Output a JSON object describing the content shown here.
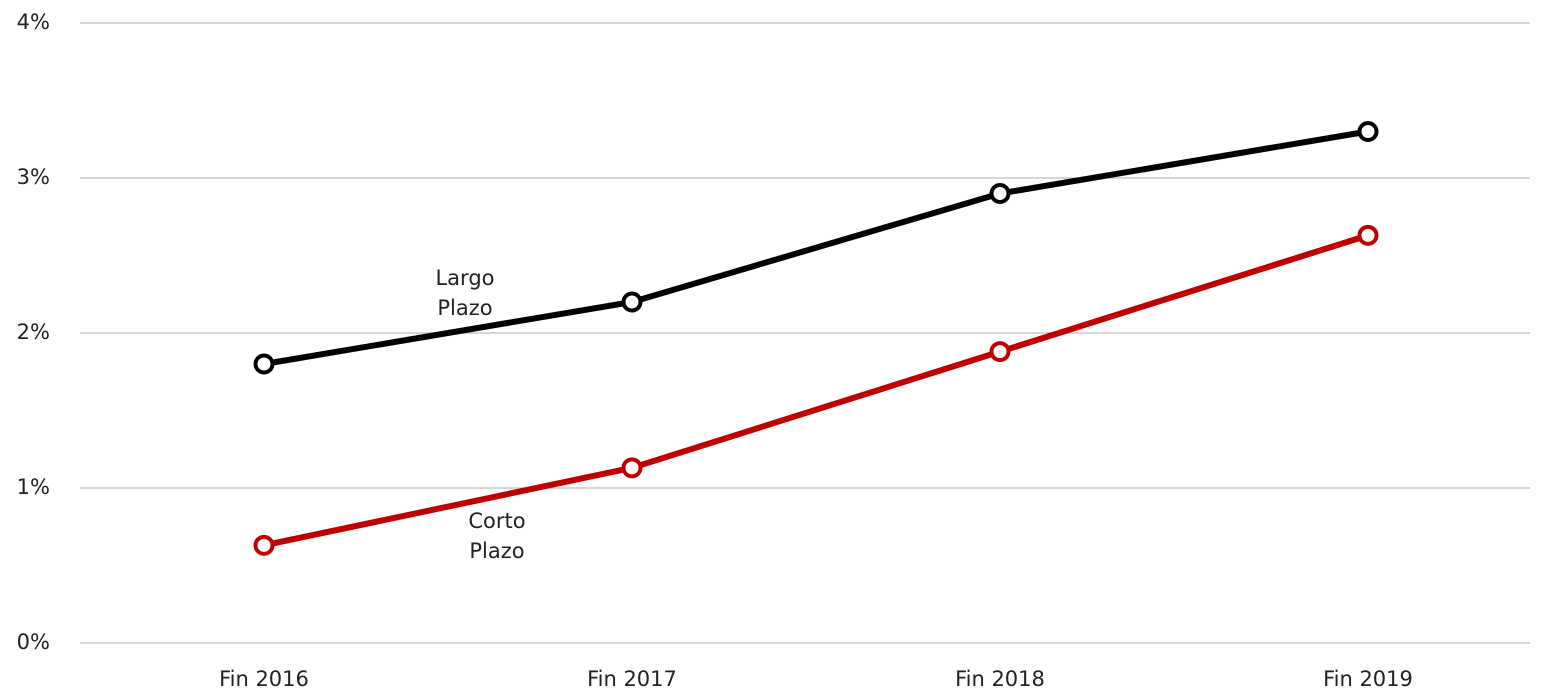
{
  "chart_data": {
    "type": "line",
    "categories": [
      "Fin 2016",
      "Fin 2017",
      "Fin 2018",
      "Fin 2019"
    ],
    "series": [
      {
        "name": "Largo Plazo",
        "color": "#000000",
        "values": [
          1.8,
          2.2,
          2.9,
          3.3
        ]
      },
      {
        "name": "Corto Plazo",
        "color": "#c00000",
        "values": [
          0.63,
          1.13,
          1.88,
          2.63
        ]
      }
    ],
    "ylim": [
      0,
      4
    ],
    "yticks": [
      {
        "value": 0,
        "label": "0%"
      },
      {
        "value": 1,
        "label": "1%"
      },
      {
        "value": 2,
        "label": "2%"
      },
      {
        "value": 3,
        "label": "3%"
      },
      {
        "value": 4,
        "label": "4%"
      }
    ],
    "grid": true
  }
}
